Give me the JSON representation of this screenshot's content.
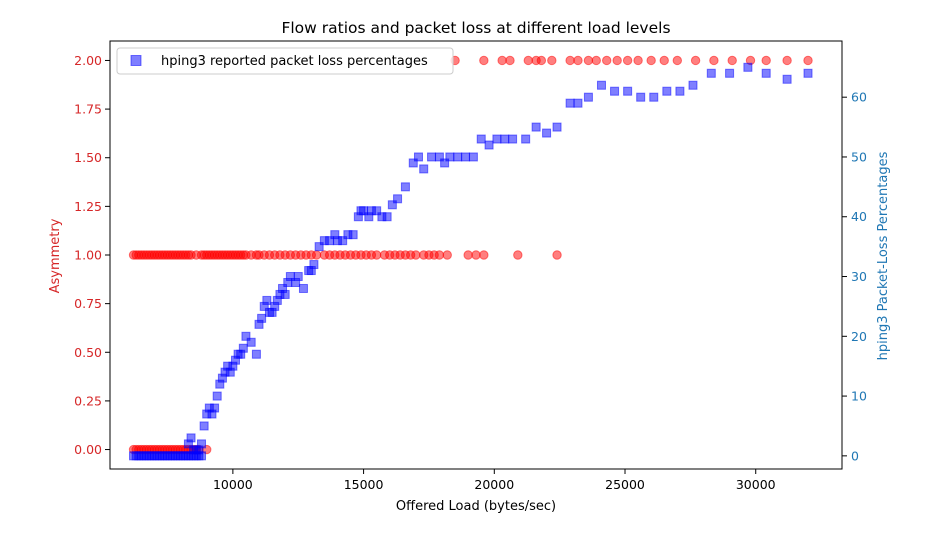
{
  "chart_data": {
    "type": "scatter",
    "title": "Flow ratios and packet loss at different load levels",
    "xlabel": "Offered Load (bytes/sec)",
    "ylabel_left": "Asymmetry",
    "ylabel_right": "hping3 Packet-Loss Percentages",
    "xlim": [
      5300,
      33300
    ],
    "ylim_left": [
      -0.1,
      2.1
    ],
    "ylim_right": [
      -2.2,
      69.4
    ],
    "x_ticks": [
      10000,
      15000,
      20000,
      25000,
      30000
    ],
    "y_left_ticks": [
      "0.00",
      "0.25",
      "0.50",
      "0.75",
      "1.00",
      "1.25",
      "1.50",
      "1.75",
      "2.00"
    ],
    "y_right_ticks": [
      0,
      10,
      20,
      30,
      40,
      50,
      60
    ],
    "grid": false,
    "legend_position": "upper left",
    "colors": {
      "left_axis": "#d62728",
      "right_axis": "#1f77b4",
      "asymmetry_marker": "#ff0000",
      "loss_marker": "#0000ff"
    },
    "series": [
      {
        "axis": "left",
        "marker": "circle",
        "color": "#ff0000",
        "points": [
          [
            6200,
            0
          ],
          [
            6300,
            0
          ],
          [
            6400,
            0
          ],
          [
            6500,
            0
          ],
          [
            6600,
            0
          ],
          [
            6700,
            0
          ],
          [
            6800,
            0
          ],
          [
            6900,
            0
          ],
          [
            7000,
            0
          ],
          [
            7100,
            0
          ],
          [
            7200,
            0
          ],
          [
            7300,
            0
          ],
          [
            7400,
            0
          ],
          [
            7500,
            0
          ],
          [
            7600,
            0
          ],
          [
            7700,
            0
          ],
          [
            7800,
            0
          ],
          [
            7900,
            0
          ],
          [
            8000,
            0
          ],
          [
            8100,
            0
          ],
          [
            8200,
            0
          ],
          [
            8300,
            0
          ],
          [
            8400,
            0
          ],
          [
            8500,
            0
          ],
          [
            8600,
            0
          ],
          [
            8700,
            0
          ],
          [
            9000,
            0
          ],
          [
            6200,
            1
          ],
          [
            6300,
            1
          ],
          [
            6400,
            1
          ],
          [
            6500,
            1
          ],
          [
            6600,
            1
          ],
          [
            6700,
            1
          ],
          [
            6800,
            1
          ],
          [
            6900,
            1
          ],
          [
            7000,
            1
          ],
          [
            7100,
            1
          ],
          [
            7200,
            1
          ],
          [
            7300,
            1
          ],
          [
            7400,
            1
          ],
          [
            7500,
            1
          ],
          [
            7600,
            1
          ],
          [
            7700,
            1
          ],
          [
            7800,
            1
          ],
          [
            7900,
            1
          ],
          [
            8000,
            1
          ],
          [
            8100,
            1
          ],
          [
            8200,
            1
          ],
          [
            8300,
            1
          ],
          [
            8400,
            1
          ],
          [
            8600,
            1
          ],
          [
            8800,
            1
          ],
          [
            8900,
            1
          ],
          [
            9000,
            1
          ],
          [
            9100,
            1
          ],
          [
            9200,
            1
          ],
          [
            9300,
            1
          ],
          [
            9400,
            1
          ],
          [
            9500,
            1
          ],
          [
            9600,
            1
          ],
          [
            9700,
            1
          ],
          [
            9800,
            1
          ],
          [
            9900,
            1
          ],
          [
            10000,
            1
          ],
          [
            10100,
            1
          ],
          [
            10200,
            1
          ],
          [
            10300,
            1
          ],
          [
            10400,
            1
          ],
          [
            10500,
            1
          ],
          [
            10700,
            1
          ],
          [
            10900,
            1
          ],
          [
            11000,
            1
          ],
          [
            11200,
            1
          ],
          [
            11400,
            1
          ],
          [
            11600,
            1
          ],
          [
            11800,
            1
          ],
          [
            12000,
            1
          ],
          [
            12200,
            1
          ],
          [
            12400,
            1
          ],
          [
            12600,
            1
          ],
          [
            12800,
            1
          ],
          [
            13000,
            1
          ],
          [
            13200,
            1
          ],
          [
            13500,
            1
          ],
          [
            13700,
            1
          ],
          [
            13900,
            1
          ],
          [
            14100,
            1
          ],
          [
            14300,
            1
          ],
          [
            14500,
            1
          ],
          [
            14700,
            1
          ],
          [
            14900,
            1
          ],
          [
            15100,
            1
          ],
          [
            15300,
            1
          ],
          [
            15500,
            1
          ],
          [
            15800,
            1
          ],
          [
            16000,
            1
          ],
          [
            16200,
            1
          ],
          [
            16400,
            1
          ],
          [
            16600,
            1
          ],
          [
            16800,
            1
          ],
          [
            17000,
            1
          ],
          [
            17300,
            1
          ],
          [
            17500,
            1
          ],
          [
            17700,
            1
          ],
          [
            17900,
            1
          ],
          [
            18200,
            1
          ],
          [
            19000,
            1
          ],
          [
            19300,
            1
          ],
          [
            19600,
            1
          ],
          [
            20900,
            1
          ],
          [
            22400,
            1
          ],
          [
            18500,
            2
          ],
          [
            19600,
            2
          ],
          [
            20300,
            2
          ],
          [
            20600,
            2
          ],
          [
            21300,
            2
          ],
          [
            21600,
            2
          ],
          [
            21800,
            2
          ],
          [
            22200,
            2
          ],
          [
            22900,
            2
          ],
          [
            23200,
            2
          ],
          [
            23600,
            2
          ],
          [
            23900,
            2
          ],
          [
            24300,
            2
          ],
          [
            24700,
            2
          ],
          [
            25100,
            2
          ],
          [
            25500,
            2
          ],
          [
            26000,
            2
          ],
          [
            26500,
            2
          ],
          [
            27000,
            2
          ],
          [
            27700,
            2
          ],
          [
            28400,
            2
          ],
          [
            29100,
            2
          ],
          [
            29800,
            2
          ],
          [
            30400,
            2
          ],
          [
            31200,
            2
          ],
          [
            32000,
            2
          ]
        ]
      },
      {
        "name": "hping3 reported packet loss percentages",
        "axis": "right",
        "marker": "square",
        "color": "#0000ff",
        "points": [
          [
            6200,
            0
          ],
          [
            6300,
            0
          ],
          [
            6400,
            0
          ],
          [
            6500,
            0
          ],
          [
            6600,
            0
          ],
          [
            6700,
            0
          ],
          [
            6800,
            0
          ],
          [
            6900,
            0
          ],
          [
            7000,
            0
          ],
          [
            7100,
            0
          ],
          [
            7200,
            0
          ],
          [
            7300,
            0
          ],
          [
            7400,
            0
          ],
          [
            7500,
            0
          ],
          [
            7600,
            0
          ],
          [
            7700,
            0
          ],
          [
            7800,
            0
          ],
          [
            7900,
            0
          ],
          [
            8000,
            0
          ],
          [
            8100,
            0
          ],
          [
            8200,
            0
          ],
          [
            8300,
            0
          ],
          [
            8400,
            0
          ],
          [
            8500,
            0
          ],
          [
            8600,
            0
          ],
          [
            8700,
            0
          ],
          [
            8800,
            0
          ],
          [
            8300,
            2
          ],
          [
            8400,
            3
          ],
          [
            8500,
            1
          ],
          [
            8600,
            1
          ],
          [
            8700,
            1
          ],
          [
            8800,
            2
          ],
          [
            8900,
            5
          ],
          [
            9000,
            7
          ],
          [
            9100,
            8
          ],
          [
            9200,
            7
          ],
          [
            9300,
            8
          ],
          [
            9400,
            10
          ],
          [
            9500,
            12
          ],
          [
            9600,
            13
          ],
          [
            9700,
            14
          ],
          [
            9800,
            15
          ],
          [
            9900,
            14
          ],
          [
            10000,
            15
          ],
          [
            10100,
            16
          ],
          [
            10200,
            17
          ],
          [
            10300,
            17
          ],
          [
            10400,
            18
          ],
          [
            10500,
            20
          ],
          [
            10700,
            19
          ],
          [
            10900,
            17
          ],
          [
            11000,
            22
          ],
          [
            11100,
            23
          ],
          [
            11200,
            25
          ],
          [
            11300,
            26
          ],
          [
            11400,
            24
          ],
          [
            11500,
            24
          ],
          [
            11600,
            25
          ],
          [
            11700,
            26
          ],
          [
            11800,
            27
          ],
          [
            11900,
            28
          ],
          [
            12000,
            27
          ],
          [
            12100,
            29
          ],
          [
            12200,
            30
          ],
          [
            12400,
            29
          ],
          [
            12500,
            30
          ],
          [
            12700,
            28
          ],
          [
            12900,
            31
          ],
          [
            13000,
            31
          ],
          [
            13100,
            32
          ],
          [
            13300,
            35
          ],
          [
            13500,
            36
          ],
          [
            13700,
            36
          ],
          [
            13900,
            37
          ],
          [
            14000,
            36
          ],
          [
            14200,
            36
          ],
          [
            14400,
            37
          ],
          [
            14600,
            37
          ],
          [
            14800,
            40
          ],
          [
            14900,
            41
          ],
          [
            15000,
            41
          ],
          [
            15200,
            40
          ],
          [
            15300,
            41
          ],
          [
            15500,
            41
          ],
          [
            15700,
            40
          ],
          [
            15900,
            40
          ],
          [
            16100,
            42
          ],
          [
            16300,
            43
          ],
          [
            16600,
            45
          ],
          [
            16900,
            49
          ],
          [
            17100,
            50
          ],
          [
            17300,
            48
          ],
          [
            17600,
            50
          ],
          [
            17900,
            50
          ],
          [
            18100,
            49
          ],
          [
            18300,
            50
          ],
          [
            18600,
            50
          ],
          [
            18900,
            50
          ],
          [
            19200,
            50
          ],
          [
            19500,
            53
          ],
          [
            19800,
            52
          ],
          [
            20100,
            53
          ],
          [
            20400,
            53
          ],
          [
            20700,
            53
          ],
          [
            21200,
            53
          ],
          [
            21600,
            55
          ],
          [
            22000,
            54
          ],
          [
            22400,
            55
          ],
          [
            22900,
            59
          ],
          [
            23200,
            59
          ],
          [
            23600,
            60
          ],
          [
            24100,
            62
          ],
          [
            24600,
            61
          ],
          [
            25100,
            61
          ],
          [
            25600,
            60
          ],
          [
            26100,
            60
          ],
          [
            26600,
            61
          ],
          [
            27100,
            61
          ],
          [
            27600,
            62
          ],
          [
            28300,
            64
          ],
          [
            29000,
            64
          ],
          [
            29700,
            65
          ],
          [
            30400,
            64
          ],
          [
            31200,
            63
          ],
          [
            32000,
            64
          ]
        ]
      }
    ]
  }
}
